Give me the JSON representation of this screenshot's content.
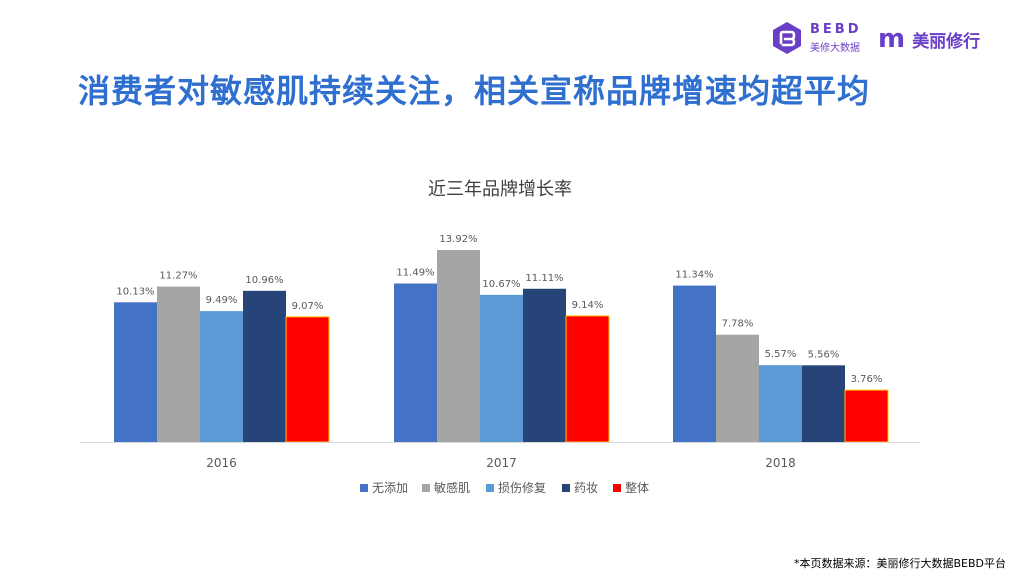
{
  "header": {
    "headline": "消费者对敏感肌持续关注，相关宣称品牌增速均超平均",
    "logo_bebd": {
      "wordmark": "BEBD",
      "subtitle": "美修大数据",
      "icon": "bebd-hexagon-icon"
    },
    "logo_meilixiuxing": {
      "mark": "m",
      "name": "美丽修行"
    },
    "brand_color": "#6a3fc7",
    "headline_color": "#2e6fd0"
  },
  "chart_data": {
    "type": "bar",
    "title": "近三年品牌增长率",
    "categories": [
      "2016",
      "2017",
      "2018"
    ],
    "series": [
      {
        "name": "无添加",
        "color": "#4472c4",
        "values": [
          10.13,
          11.49,
          11.34
        ],
        "labels": [
          "10.13%",
          "11.49%",
          "11.34%"
        ]
      },
      {
        "name": "敏感肌",
        "color": "#a5a5a5",
        "values": [
          11.27,
          13.92,
          7.78
        ],
        "labels": [
          "11.27%",
          "13.92%",
          "7.78%"
        ]
      },
      {
        "name": "损伤修复",
        "color": "#5b9bd5",
        "values": [
          9.49,
          10.67,
          5.57
        ],
        "labels": [
          "9.49%",
          "10.67%",
          "5.57%"
        ]
      },
      {
        "name": "药妆",
        "color": "#264478",
        "values": [
          10.96,
          11.11,
          5.56
        ],
        "labels": [
          "10.96%",
          "11.11%",
          "5.56%"
        ]
      },
      {
        "name": "整体",
        "color": "#ff0000",
        "values": [
          9.07,
          9.14,
          3.76
        ],
        "labels": [
          "9.07%",
          "9.14%",
          "3.76%"
        ]
      }
    ],
    "ylim": [
      0,
      14
    ],
    "y_axis_shown": false,
    "grid": false,
    "legend_position": "bottom"
  },
  "footer": {
    "source": "*本页数据来源：美丽修行大数据BEBD平台"
  }
}
